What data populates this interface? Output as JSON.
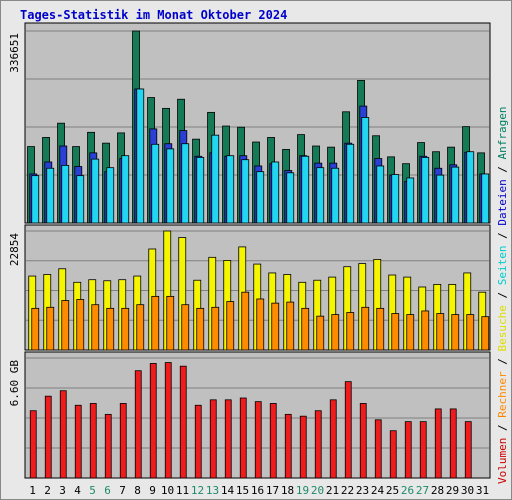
{
  "chart_data": {
    "type": "bar",
    "title": "Tages-Statistik im Monat Oktober 2024",
    "days": [
      "1",
      "2",
      "3",
      "4",
      "5",
      "6",
      "7",
      "8",
      "9",
      "10",
      "11",
      "12",
      "13",
      "14",
      "15",
      "16",
      "17",
      "18",
      "19",
      "20",
      "21",
      "22",
      "23",
      "24",
      "25",
      "26",
      "27",
      "28",
      "29",
      "30",
      "31"
    ],
    "weekend_days": [
      "5",
      "6",
      "12",
      "13",
      "19",
      "20",
      "26",
      "27"
    ],
    "panels": [
      {
        "name": "top",
        "ymax_label": "336651",
        "ymax": 336651,
        "series": [
          {
            "name": "Anfragen",
            "color": "#157a56",
            "values": [
              134000,
              150000,
              175000,
              134000,
              159000,
              140000,
              158000,
              336651,
              220000,
              201000,
              217000,
              147000,
              194000,
              170000,
              168000,
              142000,
              150000,
              129000,
              155000,
              135000,
              133000,
              195000,
              250000,
              153000,
              116000,
              104000,
              141000,
              125000,
              133000,
              169000,
              123000
            ]
          },
          {
            "name": "Dateien",
            "color": "#2a3fd6",
            "values": [
              86000,
              107000,
              135000,
              99000,
              123000,
              90000,
              113000,
              235000,
              165000,
              139000,
              162000,
              117000,
              123000,
              117000,
              118000,
              100000,
              104000,
              92000,
              118000,
              105000,
              105000,
              140000,
              205000,
              113000,
              84000,
              73000,
              117000,
              96000,
              102000,
              124000,
              86000
            ]
          },
          {
            "name": "Seiten",
            "color": "#22d6f2",
            "values": [
              83000,
              96000,
              101000,
              83000,
              112000,
              97000,
              118000,
              235000,
              138000,
              130000,
              139000,
              115000,
              154000,
              118000,
              111000,
              90000,
              107000,
              88000,
              117000,
              97000,
              96000,
              138000,
              185000,
              100000,
              85000,
              79000,
              115000,
              84000,
              98000,
              125000,
              86000
            ]
          }
        ]
      },
      {
        "name": "middle",
        "ymax_label": "22854",
        "ymax": 22854,
        "series": [
          {
            "name": "Besuche",
            "color": "#f5f500",
            "values": [
              14200,
              14500,
              15600,
              13000,
              13500,
              13300,
              13500,
              14200,
              19400,
              22854,
              21600,
              13400,
              17800,
              17200,
              19800,
              16500,
              14800,
              14500,
              13000,
              13400,
              14000,
              16000,
              16600,
              17400,
              14400,
              14000,
              12100,
              12600,
              12600,
              14800,
              11100
            ]
          },
          {
            "name": "Rechner",
            "color": "#ff8c00",
            "values": [
              8000,
              8200,
              9500,
              9700,
              8700,
              8000,
              8000,
              8700,
              10300,
              10300,
              8700,
              8000,
              8200,
              9300,
              11100,
              9800,
              9000,
              9200,
              8000,
              6500,
              6800,
              7200,
              8200,
              8000,
              7000,
              6800,
              7500,
              7000,
              6800,
              6800,
              6400
            ]
          }
        ]
      },
      {
        "name": "bottom",
        "ymax_label": "6.60 GB",
        "ymax": 6.6,
        "series": [
          {
            "name": "Volumen",
            "color": "#ee1c1c",
            "values": [
              3.7,
              4.5,
              4.8,
              4.0,
              4.1,
              3.5,
              4.1,
              5.9,
              6.3,
              6.35,
              6.15,
              4.0,
              4.3,
              4.3,
              4.4,
              4.2,
              4.1,
              3.5,
              3.4,
              3.7,
              4.3,
              5.3,
              4.1,
              3.2,
              2.6,
              3.1,
              3.1,
              3.8,
              3.8,
              3.1,
              0
            ]
          }
        ]
      }
    ],
    "legend_vertical": [
      {
        "text": "Volumen",
        "color": "#cc0000"
      },
      {
        "text": " / ",
        "color": "#000000"
      },
      {
        "text": "Rechner",
        "color": "#ff8800"
      },
      {
        "text": " / ",
        "color": "#000000"
      },
      {
        "text": "Besuche",
        "color": "#dddd00"
      },
      {
        "text": " / ",
        "color": "#000000"
      },
      {
        "text": "Seiten",
        "color": "#00cccc"
      },
      {
        "text": " / ",
        "color": "#000000"
      },
      {
        "text": "Dateien",
        "color": "#0000cc"
      },
      {
        "text": " / ",
        "color": "#000000"
      },
      {
        "text": "Anfragen",
        "color": "#008060"
      }
    ],
    "grid": true,
    "background_color": "#c0c0c0",
    "page_color": "#e8e8e8"
  }
}
